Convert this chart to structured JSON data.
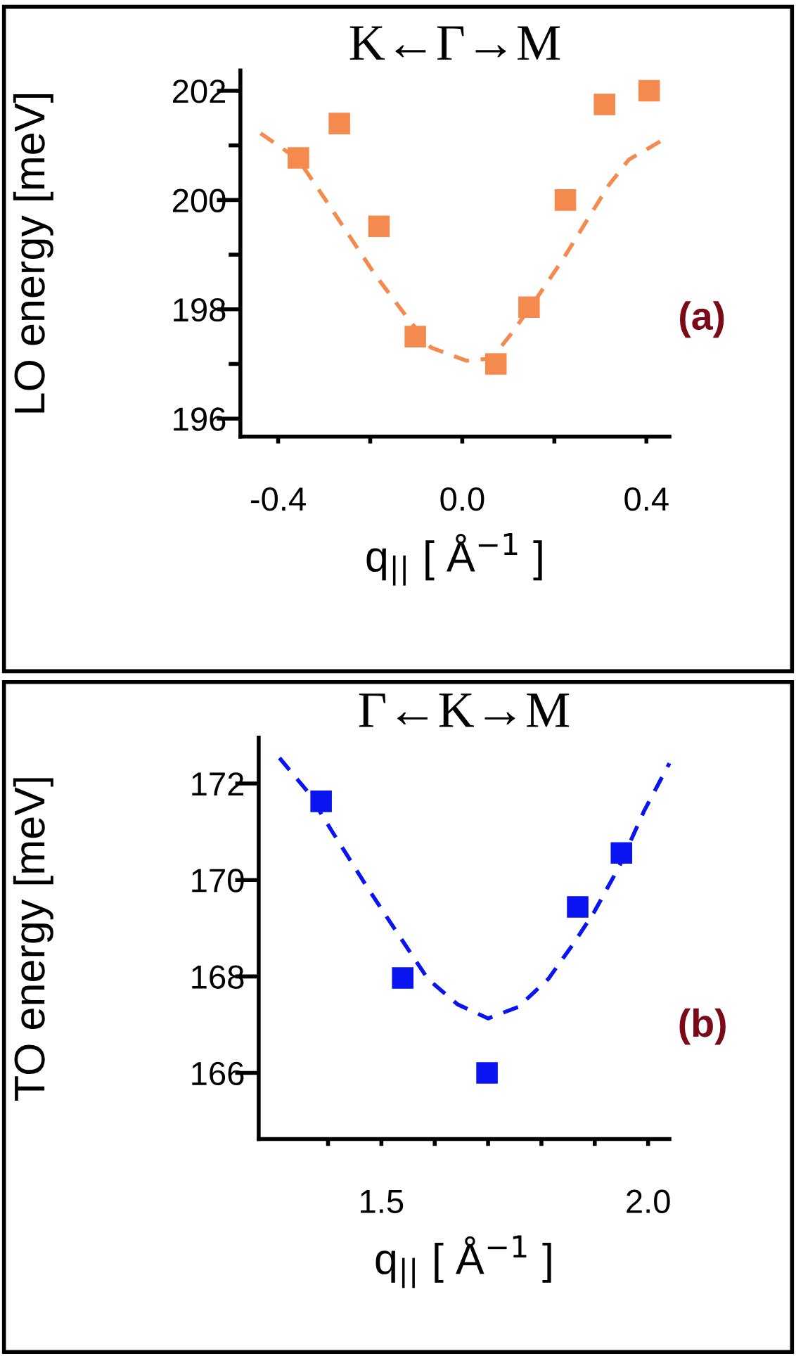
{
  "chart_data": [
    {
      "type": "scatter",
      "title": "K←Γ→M",
      "xlabel": "q$_{||}$ [ Å$^{−1}$ ]",
      "ylabel": "LO energy [meV]",
      "annotations": [
        "(a)"
      ],
      "xlim": [
        -0.482,
        0.45
      ],
      "ylim": [
        195.67,
        202.37
      ],
      "xticks": [
        -0.4,
        {
          "value": -0.2,
          "label": null
        },
        {
          "value": 0,
          "label": "0.0"
        },
        {
          "value": 0.2,
          "label": null
        },
        0.4
      ],
      "yticks": [
        196,
        {
          "value": 197,
          "label": null
        },
        198,
        {
          "value": 199,
          "label": null
        },
        200,
        {
          "value": 201,
          "label": null
        },
        202
      ],
      "grid": false,
      "legend": false,
      "series": [
        {
          "marker": "square",
          "color": "#f58a4e",
          "x": [
            -0.356,
            -0.267,
            -0.181,
            -0.102,
            0.073,
            0.145,
            0.224,
            0.309,
            0.406
          ],
          "values": [
            200.77,
            201.4,
            199.52,
            197.5,
            197.0,
            198.04,
            200.0,
            201.75,
            202.0
          ]
        },
        {
          "type": "line",
          "line_style": "dashed",
          "marker": "none",
          "color": "#f58a4e",
          "x": [
            -0.438,
            -0.356,
            -0.3,
            -0.234,
            -0.19,
            -0.124,
            -0.068,
            0.009,
            0.064,
            0.108,
            0.163,
            0.219,
            0.274,
            0.318,
            0.362,
            0.45
          ],
          "values": [
            201.22,
            200.74,
            200.04,
            199.2,
            198.64,
            197.9,
            197.3,
            197.06,
            197.1,
            197.57,
            198.22,
            198.92,
            199.67,
            200.27,
            200.74,
            201.17
          ]
        }
      ]
    },
    {
      "type": "scatter",
      "title": "Γ←K→M",
      "xlabel": "q$_{||}$ [ Å$^{−1}$ ]",
      "ylabel": "TO energy [meV]",
      "annotations": [
        "(b)"
      ],
      "xlim": [
        1.27,
        2.04
      ],
      "ylim": [
        164.63,
        172.95
      ],
      "xticks": [
        {
          "value": 1.4,
          "label": null
        },
        1.5,
        {
          "value": 1.6,
          "label": null
        },
        {
          "value": 1.7,
          "label": null
        },
        {
          "value": 1.8,
          "label": null
        },
        {
          "value": 1.9,
          "label": null
        },
        {
          "value": 2,
          "label": "2.0"
        }
      ],
      "yticks": [
        166,
        168,
        170,
        172
      ],
      "grid": false,
      "legend": false,
      "series": [
        {
          "marker": "square",
          "color": "#0a14f0",
          "x": [
            1.387,
            1.54,
            1.698,
            1.868,
            1.95
          ],
          "values": [
            171.63,
            167.97,
            166.0,
            169.44,
            170.56
          ]
        },
        {
          "type": "line",
          "line_style": "dashed",
          "marker": "none",
          "color": "#0a14f0",
          "x": [
            1.309,
            1.361,
            1.408,
            1.474,
            1.53,
            1.587,
            1.643,
            1.7,
            1.757,
            1.813,
            1.86,
            1.898,
            1.945,
            1.992,
            2.04
          ],
          "values": [
            172.53,
            171.84,
            171.0,
            169.84,
            168.9,
            167.95,
            167.42,
            167.13,
            167.37,
            167.95,
            168.68,
            169.32,
            170.26,
            171.42,
            172.42
          ]
        }
      ]
    }
  ]
}
